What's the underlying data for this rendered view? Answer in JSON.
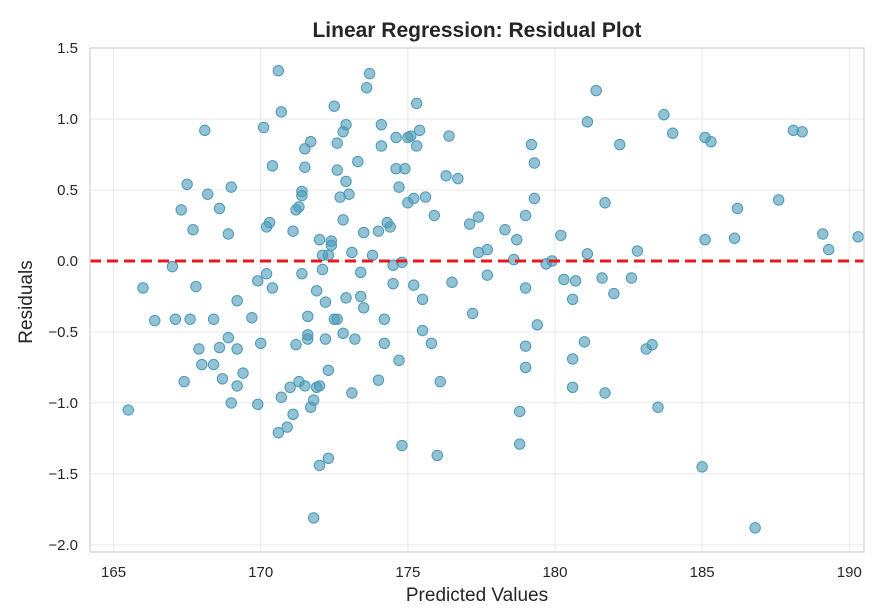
{
  "chart_data": {
    "type": "scatter",
    "title": "Linear Regression: Residual Plot",
    "xlabel": "Predicted Values",
    "ylabel": "Residuals",
    "xlim": [
      164.2,
      190.5
    ],
    "ylim": [
      -2.05,
      1.5
    ],
    "xticks": [
      165,
      170,
      175,
      180,
      185,
      190
    ],
    "yticks": [
      -2.0,
      -1.5,
      -1.0,
      -0.5,
      0.0,
      0.5,
      1.0,
      1.5
    ],
    "xtick_labels": [
      "165",
      "170",
      "175",
      "180",
      "185",
      "190"
    ],
    "ytick_labels": [
      "−2.0",
      "−1.5",
      "−1.0",
      "−0.5",
      "0.0",
      "0.5",
      "1.0",
      "1.5"
    ],
    "grid": true,
    "point_color": "#4a9ab8",
    "reference_line": {
      "y": 0,
      "color": "#e8191e",
      "style": "dashed"
    },
    "points": [
      [
        165.5,
        -1.05
      ],
      [
        166.0,
        -0.19
      ],
      [
        166.4,
        -0.42
      ],
      [
        167.0,
        -0.04
      ],
      [
        167.1,
        -0.41
      ],
      [
        167.3,
        0.36
      ],
      [
        167.4,
        -0.85
      ],
      [
        167.5,
        0.54
      ],
      [
        167.6,
        -0.41
      ],
      [
        167.7,
        0.22
      ],
      [
        167.8,
        -0.18
      ],
      [
        167.9,
        -0.62
      ],
      [
        168.0,
        -0.73
      ],
      [
        168.1,
        0.92
      ],
      [
        168.2,
        0.47
      ],
      [
        168.4,
        -0.41
      ],
      [
        168.4,
        -0.73
      ],
      [
        168.6,
        -0.61
      ],
      [
        168.6,
        0.37
      ],
      [
        168.7,
        -0.83
      ],
      [
        168.9,
        0.19
      ],
      [
        168.9,
        -0.54
      ],
      [
        169.0,
        0.52
      ],
      [
        169.0,
        -1.0
      ],
      [
        169.2,
        -0.88
      ],
      [
        169.2,
        -0.62
      ],
      [
        169.2,
        -0.28
      ],
      [
        169.4,
        -0.79
      ],
      [
        169.7,
        -0.4
      ],
      [
        169.9,
        -1.01
      ],
      [
        169.9,
        -0.14
      ],
      [
        170.0,
        -0.58
      ],
      [
        170.1,
        0.94
      ],
      [
        170.2,
        0.24
      ],
      [
        170.2,
        -0.09
      ],
      [
        170.3,
        0.27
      ],
      [
        170.4,
        0.67
      ],
      [
        170.4,
        -0.19
      ],
      [
        170.6,
        1.34
      ],
      [
        170.6,
        -1.21
      ],
      [
        170.7,
        1.05
      ],
      [
        170.7,
        -0.96
      ],
      [
        170.9,
        -1.17
      ],
      [
        171.0,
        -0.89
      ],
      [
        171.1,
        -1.08
      ],
      [
        171.1,
        0.21
      ],
      [
        171.2,
        0.36
      ],
      [
        171.2,
        -0.59
      ],
      [
        171.3,
        0.38
      ],
      [
        171.3,
        -0.85
      ],
      [
        171.4,
        0.46
      ],
      [
        171.4,
        -0.09
      ],
      [
        171.4,
        0.49
      ],
      [
        171.5,
        0.66
      ],
      [
        171.5,
        -0.88
      ],
      [
        171.5,
        0.79
      ],
      [
        171.6,
        -0.52
      ],
      [
        171.6,
        -0.39
      ],
      [
        171.6,
        -0.55
      ],
      [
        171.7,
        0.84
      ],
      [
        171.7,
        -1.03
      ],
      [
        171.8,
        -1.81
      ],
      [
        171.8,
        -0.98
      ],
      [
        171.9,
        -0.21
      ],
      [
        171.9,
        -0.89
      ],
      [
        172.0,
        -1.44
      ],
      [
        172.0,
        0.15
      ],
      [
        172.0,
        -0.88
      ],
      [
        172.1,
        0.04
      ],
      [
        172.1,
        -0.06
      ],
      [
        172.2,
        -0.29
      ],
      [
        172.2,
        -0.55
      ],
      [
        172.3,
        -1.39
      ],
      [
        172.3,
        -0.77
      ],
      [
        172.3,
        0.04
      ],
      [
        172.4,
        0.11
      ],
      [
        172.4,
        0.14
      ],
      [
        172.5,
        1.09
      ],
      [
        172.5,
        -0.41
      ],
      [
        172.6,
        -0.41
      ],
      [
        172.6,
        0.83
      ],
      [
        172.6,
        0.64
      ],
      [
        172.7,
        0.45
      ],
      [
        172.8,
        0.29
      ],
      [
        172.8,
        -0.51
      ],
      [
        172.8,
        0.91
      ],
      [
        172.9,
        0.56
      ],
      [
        172.9,
        0.96
      ],
      [
        172.9,
        -0.26
      ],
      [
        173.0,
        0.47
      ],
      [
        173.1,
        0.06
      ],
      [
        173.1,
        -0.93
      ],
      [
        173.2,
        -0.55
      ],
      [
        173.3,
        0.7
      ],
      [
        173.4,
        -0.25
      ],
      [
        173.4,
        -0.08
      ],
      [
        173.5,
        0.2
      ],
      [
        173.5,
        -0.33
      ],
      [
        173.6,
        1.22
      ],
      [
        173.7,
        1.32
      ],
      [
        173.8,
        0.04
      ],
      [
        174.0,
        0.21
      ],
      [
        174.0,
        -0.84
      ],
      [
        174.1,
        0.81
      ],
      [
        174.1,
        0.96
      ],
      [
        174.2,
        -0.58
      ],
      [
        174.2,
        -0.41
      ],
      [
        174.3,
        0.27
      ],
      [
        174.4,
        0.24
      ],
      [
        174.5,
        -0.03
      ],
      [
        174.5,
        -0.16
      ],
      [
        174.6,
        0.65
      ],
      [
        174.6,
        0.87
      ],
      [
        174.7,
        -0.7
      ],
      [
        174.7,
        0.52
      ],
      [
        174.8,
        -1.3
      ],
      [
        174.8,
        -0.01
      ],
      [
        174.9,
        0.65
      ],
      [
        175.0,
        0.87
      ],
      [
        175.0,
        0.41
      ],
      [
        175.1,
        0.88
      ],
      [
        175.2,
        -0.17
      ],
      [
        175.2,
        0.44
      ],
      [
        175.3,
        0.81
      ],
      [
        175.3,
        1.11
      ],
      [
        175.4,
        0.92
      ],
      [
        175.5,
        -0.49
      ],
      [
        175.5,
        -0.27
      ],
      [
        175.6,
        0.45
      ],
      [
        175.8,
        -0.58
      ],
      [
        175.9,
        0.32
      ],
      [
        176.0,
        -1.37
      ],
      [
        176.1,
        -0.85
      ],
      [
        176.3,
        0.6
      ],
      [
        176.4,
        0.88
      ],
      [
        176.5,
        -0.15
      ],
      [
        176.7,
        0.58
      ],
      [
        177.1,
        0.26
      ],
      [
        177.2,
        -0.37
      ],
      [
        177.4,
        0.31
      ],
      [
        177.4,
        0.06
      ],
      [
        177.7,
        -0.1
      ],
      [
        177.7,
        0.08
      ],
      [
        178.3,
        0.22
      ],
      [
        178.6,
        0.01
      ],
      [
        178.7,
        0.15
      ],
      [
        178.8,
        -1.06
      ],
      [
        178.8,
        -1.29
      ],
      [
        179.0,
        0.32
      ],
      [
        179.0,
        -0.19
      ],
      [
        179.0,
        -0.6
      ],
      [
        179.0,
        -0.75
      ],
      [
        179.2,
        0.82
      ],
      [
        179.3,
        0.44
      ],
      [
        179.3,
        0.69
      ],
      [
        179.4,
        -0.45
      ],
      [
        179.7,
        -0.02
      ],
      [
        179.9,
        0.0
      ],
      [
        180.2,
        0.18
      ],
      [
        180.3,
        -0.13
      ],
      [
        180.6,
        -0.89
      ],
      [
        180.6,
        -0.69
      ],
      [
        180.6,
        -0.27
      ],
      [
        180.7,
        -0.14
      ],
      [
        181.0,
        -0.57
      ],
      [
        181.1,
        0.98
      ],
      [
        181.1,
        0.05
      ],
      [
        181.4,
        1.2
      ],
      [
        181.6,
        -0.12
      ],
      [
        181.7,
        -0.93
      ],
      [
        181.7,
        0.41
      ],
      [
        182.0,
        -0.23
      ],
      [
        182.2,
        0.82
      ],
      [
        182.6,
        -0.12
      ],
      [
        182.8,
        0.07
      ],
      [
        183.1,
        -0.62
      ],
      [
        183.3,
        -0.59
      ],
      [
        183.5,
        -1.03
      ],
      [
        183.7,
        1.03
      ],
      [
        184.0,
        0.9
      ],
      [
        185.0,
        -1.45
      ],
      [
        185.1,
        0.87
      ],
      [
        185.1,
        0.15
      ],
      [
        185.3,
        0.84
      ],
      [
        186.1,
        0.16
      ],
      [
        186.2,
        0.37
      ],
      [
        186.8,
        -1.88
      ],
      [
        187.6,
        0.43
      ],
      [
        188.1,
        0.92
      ],
      [
        188.4,
        0.91
      ],
      [
        189.1,
        0.19
      ],
      [
        189.3,
        0.08
      ],
      [
        190.3,
        0.17
      ]
    ]
  }
}
